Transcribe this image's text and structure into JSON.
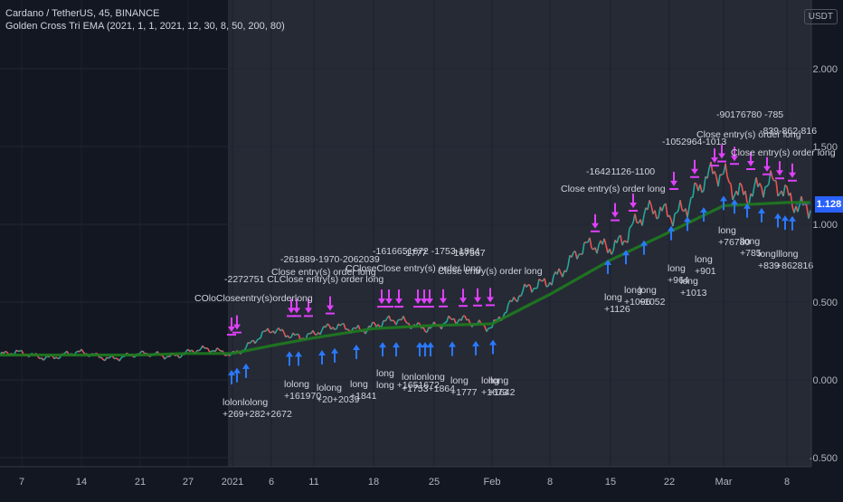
{
  "header": {
    "symbol_line": "Cardano / TetherUS, 45, BINANCE",
    "indicator_line": "Golden Cross Tri EMA (2021, 1, 1, 2021, 12, 30, 8, 50, 200, 80)"
  },
  "currency_label": "USDT",
  "colors": {
    "background": "#131722",
    "backtest_region": "#262a35",
    "ema_slow": "#1f7a1f",
    "price_up": "#26a69a",
    "price_down": "#ef5350",
    "buy_arrow": "#2979ff",
    "sell_arrow": "#e040fb",
    "price_badge": "#2962ff"
  },
  "last_price": "1.128",
  "chart_data": {
    "type": "line",
    "y_axis": {
      "ticks": [
        "2.000",
        "1.500",
        "1.000",
        "0.500",
        "0.000",
        "-0.500"
      ],
      "range": [
        -0.5,
        2.0
      ]
    },
    "x_axis": {
      "ticks": [
        "7",
        "14",
        "21",
        "27",
        "2021",
        "6",
        "11",
        "18",
        "25",
        "Feb",
        "8",
        "15",
        "22",
        "Mar",
        "8"
      ]
    },
    "series": [
      {
        "role": "price",
        "points": [
          [
            "7",
            0.16
          ],
          [
            "14",
            0.16
          ],
          [
            "21",
            0.15
          ],
          [
            "27",
            0.18
          ],
          [
            "2021",
            0.18
          ],
          [
            "6",
            0.3
          ],
          [
            "11",
            0.3
          ],
          [
            "18",
            0.36
          ],
          [
            "25",
            0.36
          ],
          [
            "Feb",
            0.37
          ],
          [
            "8",
            0.68
          ],
          [
            "15",
            0.9
          ],
          [
            "22",
            1.1
          ],
          [
            "Mar",
            1.3
          ],
          [
            "8",
            1.17
          ]
        ]
      },
      {
        "role": "ema",
        "points": [
          [
            "7",
            0.16
          ],
          [
            "14",
            0.16
          ],
          [
            "21",
            0.16
          ],
          [
            "27",
            0.17
          ],
          [
            "2021",
            0.17
          ],
          [
            "6",
            0.22
          ],
          [
            "11",
            0.27
          ],
          [
            "18",
            0.33
          ],
          [
            "25",
            0.35
          ],
          [
            "Feb",
            0.36
          ],
          [
            "8",
            0.55
          ],
          [
            "15",
            0.77
          ],
          [
            "22",
            0.95
          ],
          [
            "Mar",
            1.12
          ],
          [
            "8",
            1.14
          ]
        ]
      }
    ],
    "annotations": {
      "top_labels": [
        "COloCloseentry(s)orderlong",
        "-2272751 CLClose entry(s) order long",
        "-261889-1970-2062039",
        "Close entry(s) order long",
        "CCloseClose entry(s) order long",
        "-1616651672 -1753-1864",
        "-1777",
        "-167567",
        "Close entry(s) order long",
        "-1642",
        "-1126-1100",
        "Close entry(s) order long",
        "-1052964-1013",
        "-90176780 -785",
        "Close entry(s) order long",
        "-839-862-816",
        "Close entry(s) order long"
      ],
      "bottom_labels": [
        "lolonlolong +269+282+2672",
        "lolong +161970",
        "lolong +20+2039",
        "long +1841",
        "long long +1651672",
        "lonlonlong +1753+1864",
        "long +1777",
        "long +1673",
        "llong +1642",
        "long +1126",
        "long +1096",
        "long +1052",
        "long +964",
        "long +1013",
        "long +901",
        "long +76780",
        "llong +785",
        "long +839",
        "lllong +862816"
      ]
    }
  }
}
